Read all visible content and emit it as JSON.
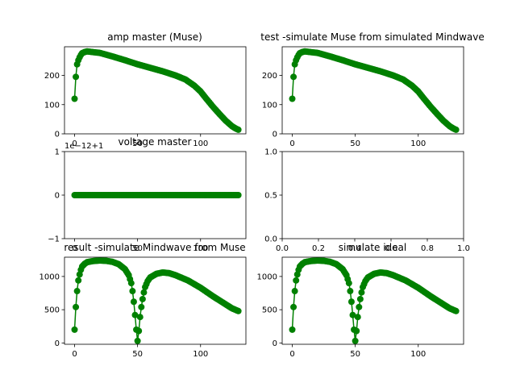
{
  "chart_data": [
    {
      "type": "line",
      "title": "amp master (Muse)",
      "xlim": [
        -8,
        136
      ],
      "ylim": [
        0,
        298
      ],
      "xticks": [
        0,
        50,
        100
      ],
      "yticks": [
        0,
        100,
        200
      ],
      "color": "#008000",
      "knots": [
        [
          0,
          120
        ],
        [
          1,
          195
        ],
        [
          2,
          238
        ],
        [
          3,
          252
        ],
        [
          4,
          262
        ],
        [
          5,
          270
        ],
        [
          6,
          276
        ],
        [
          8,
          280
        ],
        [
          10,
          282
        ],
        [
          14,
          280
        ],
        [
          20,
          277
        ],
        [
          30,
          265
        ],
        [
          40,
          252
        ],
        [
          50,
          238
        ],
        [
          60,
          226
        ],
        [
          70,
          214
        ],
        [
          80,
          200
        ],
        [
          88,
          186
        ],
        [
          95,
          165
        ],
        [
          100,
          145
        ],
        [
          105,
          118
        ],
        [
          110,
          92
        ],
        [
          115,
          68
        ],
        [
          120,
          45
        ],
        [
          125,
          26
        ],
        [
          128,
          18
        ],
        [
          130,
          14
        ]
      ],
      "n_points": 131
    },
    {
      "type": "line",
      "title": "test -simulate Muse from simulated Mindwave",
      "xlim": [
        -8,
        136
      ],
      "ylim": [
        0,
        298
      ],
      "xticks": [
        0,
        50,
        100
      ],
      "yticks": [
        0,
        100,
        200
      ],
      "color": "#008000",
      "knots": [
        [
          0,
          120
        ],
        [
          1,
          195
        ],
        [
          2,
          238
        ],
        [
          3,
          252
        ],
        [
          4,
          262
        ],
        [
          5,
          270
        ],
        [
          6,
          276
        ],
        [
          8,
          280
        ],
        [
          10,
          282
        ],
        [
          14,
          280
        ],
        [
          20,
          277
        ],
        [
          30,
          265
        ],
        [
          40,
          252
        ],
        [
          50,
          238
        ],
        [
          60,
          226
        ],
        [
          70,
          214
        ],
        [
          80,
          200
        ],
        [
          88,
          186
        ],
        [
          95,
          165
        ],
        [
          100,
          145
        ],
        [
          105,
          118
        ],
        [
          110,
          92
        ],
        [
          115,
          68
        ],
        [
          120,
          45
        ],
        [
          125,
          26
        ],
        [
          128,
          18
        ],
        [
          130,
          14
        ]
      ],
      "n_points": 131
    },
    {
      "type": "line",
      "title": "voltage master",
      "offset_label": "1e−12+1",
      "xlim": [
        -8,
        136
      ],
      "ylim": [
        -1,
        1
      ],
      "xticks": [
        0,
        50,
        100
      ],
      "yticks": [
        -1,
        0,
        1
      ],
      "color": "#008000",
      "knots": [
        [
          0,
          0
        ],
        [
          130,
          0
        ]
      ],
      "n_points": 131
    },
    {
      "type": "empty",
      "title": "",
      "xlim": [
        0,
        1
      ],
      "ylim": [
        0,
        1
      ],
      "xticks": [
        0.0,
        0.2,
        0.4,
        0.6,
        0.8,
        1.0
      ],
      "yticks": [
        0.0,
        0.5,
        1.0
      ]
    },
    {
      "type": "line",
      "title": "result -simulate Mindwave from Muse",
      "xlim": [
        -8,
        136
      ],
      "ylim": [
        -20,
        1290
      ],
      "xticks": [
        0,
        50,
        100
      ],
      "yticks": [
        0,
        500,
        1000
      ],
      "color": "#008000",
      "knots": [
        [
          0,
          200
        ],
        [
          1,
          540
        ],
        [
          2,
          780
        ],
        [
          3,
          940
        ],
        [
          4,
          1030
        ],
        [
          5,
          1100
        ],
        [
          6,
          1150
        ],
        [
          8,
          1190
        ],
        [
          10,
          1215
        ],
        [
          14,
          1230
        ],
        [
          20,
          1240
        ],
        [
          25,
          1235
        ],
        [
          30,
          1220
        ],
        [
          35,
          1185
        ],
        [
          40,
          1110
        ],
        [
          43,
          1020
        ],
        [
          45,
          900
        ],
        [
          46,
          780
        ],
        [
          47,
          620
        ],
        [
          48,
          420
        ],
        [
          49,
          200
        ],
        [
          50,
          30
        ],
        [
          51,
          180
        ],
        [
          52,
          390
        ],
        [
          53,
          540
        ],
        [
          54,
          660
        ],
        [
          55,
          760
        ],
        [
          56,
          840
        ],
        [
          58,
          930
        ],
        [
          60,
          985
        ],
        [
          65,
          1040
        ],
        [
          70,
          1060
        ],
        [
          75,
          1050
        ],
        [
          80,
          1020
        ],
        [
          90,
          940
        ],
        [
          100,
          830
        ],
        [
          110,
          700
        ],
        [
          120,
          580
        ],
        [
          125,
          520
        ],
        [
          130,
          480
        ]
      ],
      "n_points": 131
    },
    {
      "type": "line",
      "title": "simulate ideal",
      "xlim": [
        -8,
        136
      ],
      "ylim": [
        -20,
        1290
      ],
      "xticks": [
        0,
        50,
        100
      ],
      "yticks": [
        0,
        500,
        1000
      ],
      "color": "#008000",
      "knots": [
        [
          0,
          200
        ],
        [
          1,
          540
        ],
        [
          2,
          780
        ],
        [
          3,
          940
        ],
        [
          4,
          1030
        ],
        [
          5,
          1100
        ],
        [
          6,
          1150
        ],
        [
          8,
          1190
        ],
        [
          10,
          1215
        ],
        [
          14,
          1230
        ],
        [
          20,
          1240
        ],
        [
          25,
          1235
        ],
        [
          30,
          1220
        ],
        [
          35,
          1185
        ],
        [
          40,
          1110
        ],
        [
          43,
          1020
        ],
        [
          45,
          900
        ],
        [
          46,
          780
        ],
        [
          47,
          620
        ],
        [
          48,
          420
        ],
        [
          49,
          200
        ],
        [
          50,
          30
        ],
        [
          51,
          180
        ],
        [
          52,
          390
        ],
        [
          53,
          540
        ],
        [
          54,
          660
        ],
        [
          55,
          760
        ],
        [
          56,
          840
        ],
        [
          58,
          930
        ],
        [
          60,
          985
        ],
        [
          65,
          1040
        ],
        [
          70,
          1060
        ],
        [
          75,
          1050
        ],
        [
          80,
          1020
        ],
        [
          90,
          940
        ],
        [
          100,
          830
        ],
        [
          110,
          700
        ],
        [
          120,
          580
        ],
        [
          125,
          520
        ],
        [
          130,
          480
        ]
      ],
      "n_points": 131
    }
  ]
}
